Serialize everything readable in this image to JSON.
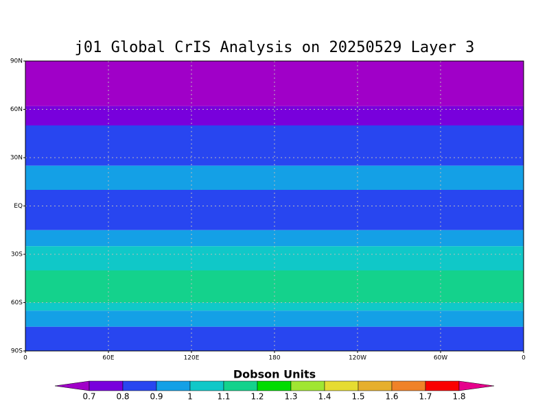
{
  "chart_data": {
    "type": "contour-map",
    "title": "j01 Global CrIS Analysis on 20250529 Layer 3",
    "xlim": [
      0,
      360
    ],
    "xticks": [
      0,
      {
        "value": 60,
        "label": "60E"
      },
      {
        "value": 120,
        "label": "120E"
      },
      180,
      {
        "value": 240,
        "label": "120W"
      },
      {
        "value": 300,
        "label": "60W"
      },
      {
        "value": 360,
        "label": "0"
      }
    ],
    "ylim": [
      -90,
      90
    ],
    "yticks": [
      {
        "value": 90,
        "label": "90N"
      },
      {
        "value": 60,
        "label": "60N"
      },
      {
        "value": 30,
        "label": "30N"
      },
      {
        "value": 0,
        "label": "EQ"
      },
      {
        "value": -30,
        "label": "30S"
      },
      {
        "value": -60,
        "label": "60S"
      },
      {
        "value": -90,
        "label": "90S"
      }
    ],
    "grid": true,
    "field": {
      "lat_bins": [
        90,
        62,
        50,
        25,
        10,
        -15,
        -25,
        -40,
        -60,
        -65,
        -75,
        -90
      ],
      "values": [
        0.65,
        0.75,
        0.85,
        0.95,
        0.85,
        0.95,
        1.05,
        1.15,
        1.05,
        0.95,
        0.85
      ]
    },
    "colorbar": {
      "label": "Dobson Units",
      "levels": [
        0.7,
        0.8,
        0.9,
        1,
        1.1,
        1.2,
        1.3,
        1.4,
        1.5,
        1.6,
        1.7,
        1.8
      ],
      "colors": [
        "#a000c8",
        "#7800dc",
        "#2846f0",
        "#14a0e6",
        "#10c8c8",
        "#14d28c",
        "#00dc00",
        "#a0e632",
        "#e6dc32",
        "#e6af2d",
        "#f08228",
        "#fa0000",
        "#e6008c"
      ]
    }
  }
}
